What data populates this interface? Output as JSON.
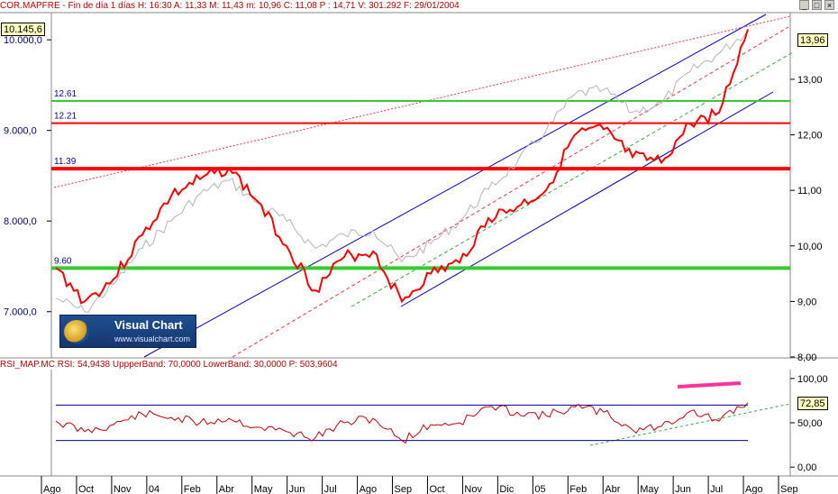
{
  "window": {
    "header_main": "COR.MAPFRE - Fin de día 1 días H: 16:30  A: 11,33  M: 11,43  m: 10,96  C: 11,08  P : 14,71  V: 301.292  F: 29/01/2004",
    "header_rsi": "RSI_MAP.MC  RSI: 54,9438  UppperBand: 70,0000  LowerBand: 30,0000  P: 503,9604",
    "btn_min": "_",
    "btn_max": "□",
    "btn_close": "×"
  },
  "logo": {
    "title": "Visual Chart",
    "url": "www.visualchart.com"
  },
  "colors": {
    "price": "#ff0000",
    "index": "#b4b4b4",
    "green": "#33cc33",
    "red_level": "#ff0000",
    "channel": "#0000cc",
    "rsi": "#cc0000",
    "rsi_band": "#000099",
    "pink": "#ff3399"
  },
  "chart_data": [
    {
      "type": "line",
      "title": "COR.MAPFRE",
      "x_tick_labels": [
        "Ago",
        "Oct",
        "Nov",
        "04",
        "Feb",
        "Abr",
        "May",
        "Jun",
        "Jul",
        "Ago",
        "Sep",
        "Oct",
        "Nov",
        "Dic",
        "05",
        "Feb",
        "Abr",
        "May",
        "Jun",
        "Jul",
        "Ago",
        "Sep"
      ],
      "left_axis": {
        "ticks": [
          "10.000,0",
          "9.000,0",
          "8.000,0",
          "7.000,0"
        ],
        "current": "10.145,6",
        "ylim": [
          6500,
          10300
        ]
      },
      "right_axis": {
        "ticks": [
          "13,00",
          "12,00",
          "11,00",
          "10,00",
          "9,00",
          "8,00"
        ],
        "current": "13,96",
        "ylim": [
          8.0,
          14.2
        ]
      },
      "horizontal_levels": [
        {
          "label": "12.61",
          "value": 12.61,
          "color": "green"
        },
        {
          "label": "12.21",
          "value": 12.21,
          "color": "red"
        },
        {
          "label": "11.39",
          "value": 11.39,
          "color": "red"
        },
        {
          "label": "9.60",
          "value": 9.6,
          "color": "green"
        }
      ],
      "series": [
        {
          "name": "COR.MAPFRE",
          "axis": "right",
          "x": [
            "2003-08",
            "2003-09",
            "2003-10",
            "2003-11",
            "2003-12",
            "2004-01",
            "2004-02",
            "2004-03",
            "2004-04",
            "2004-05",
            "2004-06",
            "2004-07",
            "2004-08",
            "2004-09",
            "2004-10",
            "2004-11",
            "2004-12",
            "2005-01",
            "2005-02",
            "2005-03",
            "2005-04",
            "2005-05",
            "2005-06",
            "2005-07",
            "2005-08"
          ],
          "values": [
            9.6,
            9.0,
            9.4,
            10.2,
            10.9,
            11.2,
            11.4,
            10.8,
            10.0,
            9.2,
            9.8,
            9.9,
            9.0,
            9.5,
            9.7,
            10.5,
            10.7,
            11.0,
            12.0,
            12.1,
            11.6,
            11.5,
            12.2,
            12.4,
            13.9
          ]
        },
        {
          "name": "Index",
          "axis": "left",
          "x": [
            "2003-08",
            "2003-09",
            "2003-10",
            "2003-11",
            "2003-12",
            "2004-01",
            "2004-02",
            "2004-03",
            "2004-04",
            "2004-05",
            "2004-06",
            "2004-07",
            "2004-08",
            "2004-09",
            "2004-10",
            "2004-11",
            "2004-12",
            "2005-01",
            "2005-02",
            "2005-03",
            "2005-04",
            "2005-05",
            "2005-06",
            "2005-07",
            "2005-08"
          ],
          "values": [
            7150,
            7000,
            7300,
            7700,
            8000,
            8300,
            8450,
            8200,
            8000,
            7700,
            7850,
            7900,
            7550,
            7750,
            8000,
            8350,
            8650,
            9000,
            9400,
            9450,
            9200,
            9300,
            9650,
            9850,
            10100
          ]
        }
      ]
    },
    {
      "type": "line",
      "title": "RSI_MAP.MC",
      "axis_ticks": [
        "100,00",
        "50,00",
        "0,00"
      ],
      "current": "72,85",
      "ylim": [
        -10,
        110
      ],
      "bands": {
        "upper": 70,
        "lower": 30
      },
      "series": [
        {
          "name": "RSI",
          "x": [
            "2003-08",
            "2003-09",
            "2003-10",
            "2003-11",
            "2003-12",
            "2004-01",
            "2004-02",
            "2004-03",
            "2004-04",
            "2004-05",
            "2004-06",
            "2004-07",
            "2004-08",
            "2004-09",
            "2004-10",
            "2004-11",
            "2004-12",
            "2005-01",
            "2005-02",
            "2005-03",
            "2005-04",
            "2005-05",
            "2005-06",
            "2005-07",
            "2005-08"
          ],
          "values": [
            52,
            40,
            48,
            60,
            56,
            50,
            55,
            45,
            40,
            33,
            50,
            55,
            30,
            48,
            50,
            68,
            62,
            58,
            68,
            62,
            42,
            46,
            63,
            52,
            72.85
          ]
        }
      ]
    }
  ]
}
